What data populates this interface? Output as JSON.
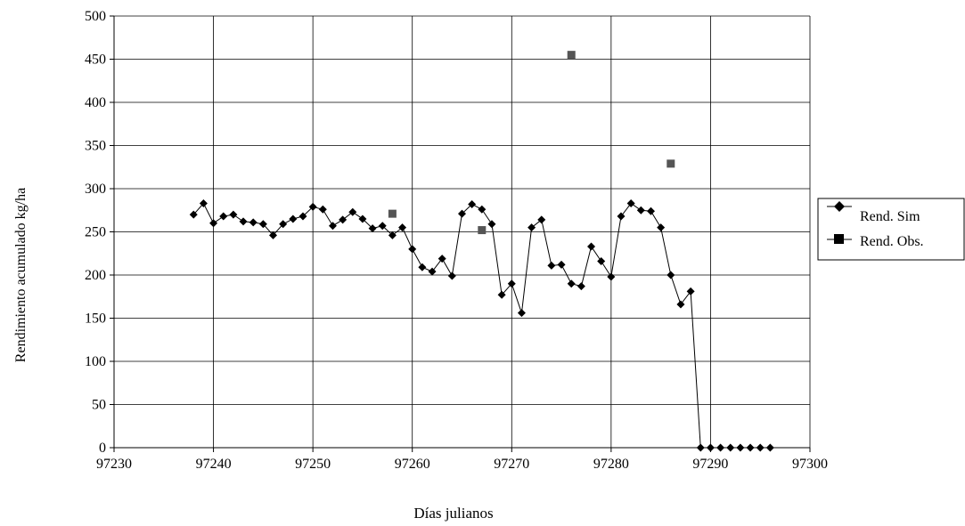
{
  "chart_data": {
    "type": "line",
    "title": "",
    "xlabel": "Días julianos",
    "ylabel": "Rendimiento acumulado kg/ha",
    "xlim": [
      97230,
      97300
    ],
    "ylim": [
      0,
      500
    ],
    "xticks": [
      97230,
      97240,
      97250,
      97260,
      97270,
      97280,
      97290,
      97300
    ],
    "yticks": [
      0,
      50,
      100,
      150,
      200,
      250,
      300,
      350,
      400,
      450,
      500
    ],
    "grid": true,
    "legend_position": "right",
    "series": [
      {
        "name": "Rend. Sim",
        "type": "line",
        "marker": "diamond",
        "color": "#000000",
        "points": [
          [
            97238,
            270
          ],
          [
            97239,
            283
          ],
          [
            97240,
            260
          ],
          [
            97241,
            268
          ],
          [
            97242,
            270
          ],
          [
            97243,
            262
          ],
          [
            97244,
            261
          ],
          [
            97245,
            259
          ],
          [
            97246,
            246
          ],
          [
            97247,
            259
          ],
          [
            97248,
            265
          ],
          [
            97249,
            268
          ],
          [
            97250,
            279
          ],
          [
            97251,
            276
          ],
          [
            97252,
            257
          ],
          [
            97253,
            264
          ],
          [
            97254,
            273
          ],
          [
            97255,
            265
          ],
          [
            97256,
            254
          ],
          [
            97257,
            257
          ],
          [
            97258,
            246
          ],
          [
            97259,
            255
          ],
          [
            97260,
            230
          ],
          [
            97261,
            209
          ],
          [
            97262,
            204
          ],
          [
            97263,
            219
          ],
          [
            97264,
            199
          ],
          [
            97265,
            271
          ],
          [
            97266,
            282
          ],
          [
            97267,
            276
          ],
          [
            97268,
            259
          ],
          [
            97269,
            177
          ],
          [
            97270,
            190
          ],
          [
            97271,
            156
          ],
          [
            97272,
            255
          ],
          [
            97273,
            264
          ],
          [
            97274,
            211
          ],
          [
            97275,
            212
          ],
          [
            97276,
            190
          ],
          [
            97277,
            187
          ],
          [
            97278,
            233
          ],
          [
            97279,
            216
          ],
          [
            97280,
            198
          ],
          [
            97281,
            268
          ],
          [
            97282,
            283
          ],
          [
            97283,
            275
          ],
          [
            97284,
            274
          ],
          [
            97285,
            255
          ],
          [
            97286,
            200
          ],
          [
            97287,
            166
          ],
          [
            97288,
            181
          ],
          [
            97289,
            0
          ],
          [
            97290,
            0
          ],
          [
            97291,
            0
          ],
          [
            97292,
            0
          ],
          [
            97293,
            0
          ],
          [
            97294,
            0
          ],
          [
            97295,
            0
          ],
          [
            97296,
            0
          ]
        ]
      },
      {
        "name": "Rend. Obs.",
        "type": "scatter",
        "marker": "square",
        "color": "#555555",
        "points": [
          [
            97258,
            271
          ],
          [
            97267,
            252
          ],
          [
            97276,
            455
          ],
          [
            97286,
            329
          ]
        ]
      }
    ]
  }
}
